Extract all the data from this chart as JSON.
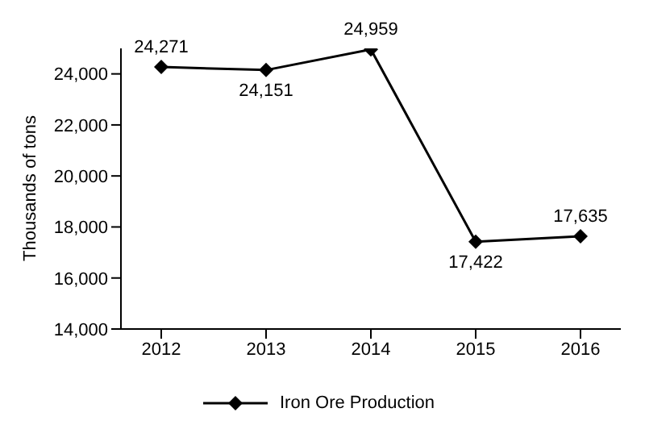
{
  "chart_data": {
    "type": "line",
    "ylabel": "Thousands of tons",
    "categories": [
      "2012",
      "2013",
      "2014",
      "2015",
      "2016"
    ],
    "series": [
      {
        "name": "Iron Ore Production",
        "color": "#000000",
        "values": [
          24271,
          24151,
          24959,
          17422,
          17635
        ],
        "value_labels": [
          "24,271",
          "24,151",
          "24,959",
          "17,422",
          "17,635"
        ]
      }
    ],
    "ylim": [
      14000,
      25000
    ],
    "yticks": [
      {
        "value": 14000,
        "label": "14,000"
      },
      {
        "value": 16000,
        "label": "16,000"
      },
      {
        "value": 18000,
        "label": "18,000"
      },
      {
        "value": 20000,
        "label": "20,000"
      },
      {
        "value": 22000,
        "label": "22,000"
      },
      {
        "value": 24000,
        "label": "24,000"
      }
    ],
    "marker": "diamond",
    "line_style": "solid",
    "legend": "bottom"
  }
}
